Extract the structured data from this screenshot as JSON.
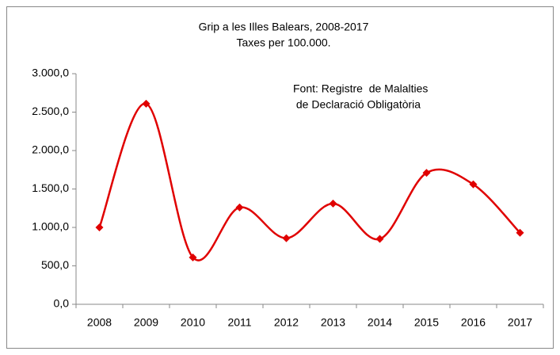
{
  "chart_data": {
    "type": "line",
    "title": [
      "Grip a les Illes Balears, 2008-2017",
      "Taxes per 100.000."
    ],
    "annotation": [
      "Font: Registre  de Malalties",
      " de Declaració Obligatòria"
    ],
    "categories": [
      "2008",
      "2009",
      "2010",
      "2011",
      "2012",
      "2013",
      "2014",
      "2015",
      "2016",
      "2017"
    ],
    "series": [
      {
        "color": "#e00000",
        "values": [
          1000,
          2610,
          610,
          1260,
          860,
          1310,
          850,
          1710,
          1560,
          930
        ]
      }
    ],
    "ylim": [
      0,
      3000
    ],
    "yticks": [
      {
        "value": 0,
        "label": "0,0"
      },
      {
        "value": 500,
        "label": "500,0"
      },
      {
        "value": 1000,
        "label": "1.000,0"
      },
      {
        "value": 1500,
        "label": "1.500,0"
      },
      {
        "value": 2000,
        "label": "2.000,0"
      },
      {
        "value": 2500,
        "label": "2.500,0"
      },
      {
        "value": 3000,
        "label": "3.000,0"
      }
    ],
    "smooth": true
  }
}
